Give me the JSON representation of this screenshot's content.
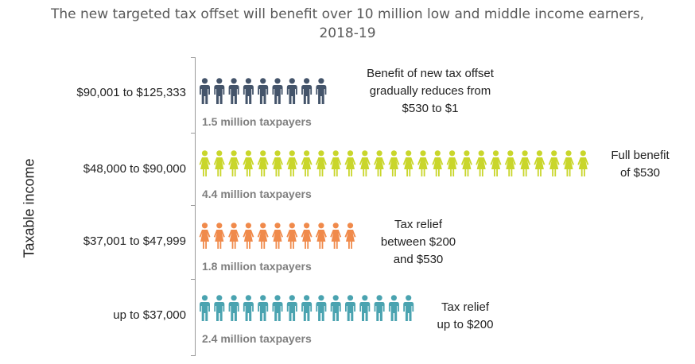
{
  "chart_data": {
    "type": "pictograph",
    "title": "The new targeted tax offset will benefit over 10 million low and middle income earners,",
    "subtitle": "2018-19",
    "ylabel": "Taxable income",
    "unit_per_icon": "approx. 0.17 million taxpayers",
    "categories": [
      {
        "label": "$90,001 to $125,333",
        "taxpayers_millions": 1.5,
        "count_label": "1.5 million taxpayers",
        "icons": 9,
        "color": "#44546a",
        "figure": "male",
        "note": [
          "Benefit of new tax offset",
          "gradually reduces from",
          "$530 to $1"
        ]
      },
      {
        "label": "$48,000 to $90,000",
        "taxpayers_millions": 4.4,
        "count_label": "4.4 million taxpayers",
        "icons": 27,
        "color": "#c9d62b",
        "figure": "female",
        "note": [
          "Full benefit",
          "of $530"
        ]
      },
      {
        "label": "$37,001 to $47,999",
        "taxpayers_millions": 1.8,
        "count_label": "1.8 million taxpayers",
        "icons": 11,
        "color": "#f08a4b",
        "figure": "female",
        "note": [
          "Tax relief",
          "between $200",
          "and $530"
        ]
      },
      {
        "label": "up to $37,000",
        "taxpayers_millions": 2.4,
        "count_label": "2.4 million taxpayers",
        "icons": 15,
        "color": "#4aa3b0",
        "figure": "male",
        "note": [
          "Tax relief",
          "up to $200"
        ]
      }
    ]
  }
}
